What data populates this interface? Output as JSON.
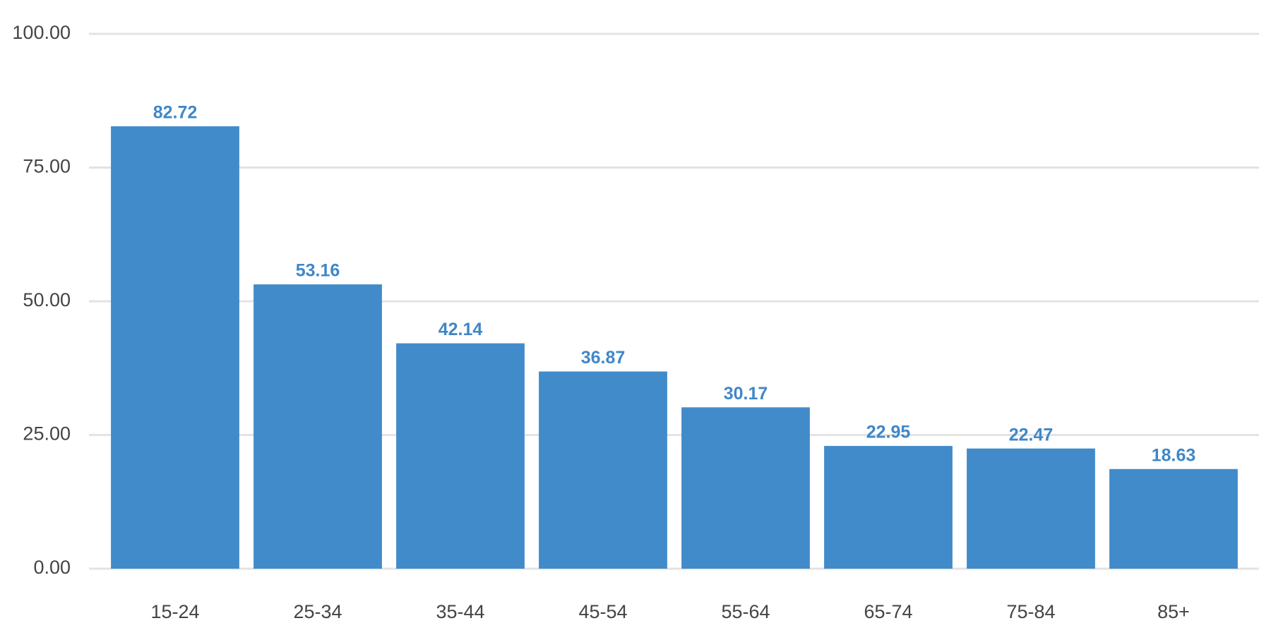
{
  "chart_data": {
    "type": "bar",
    "categories": [
      "15-24",
      "25-34",
      "35-44",
      "45-54",
      "55-64",
      "65-74",
      "75-84",
      "85+"
    ],
    "values": [
      82.72,
      53.16,
      42.14,
      36.87,
      30.17,
      22.95,
      22.47,
      18.63
    ],
    "color": "#428bca",
    "ylim": [
      0,
      100
    ],
    "yticks": [
      {
        "value": 0,
        "label": "0.00"
      },
      {
        "value": 25,
        "label": "25.00"
      },
      {
        "value": 50,
        "label": "50.00"
      },
      {
        "value": 75,
        "label": "75.00"
      },
      {
        "value": 100,
        "label": "100.00"
      }
    ],
    "grid": true
  }
}
